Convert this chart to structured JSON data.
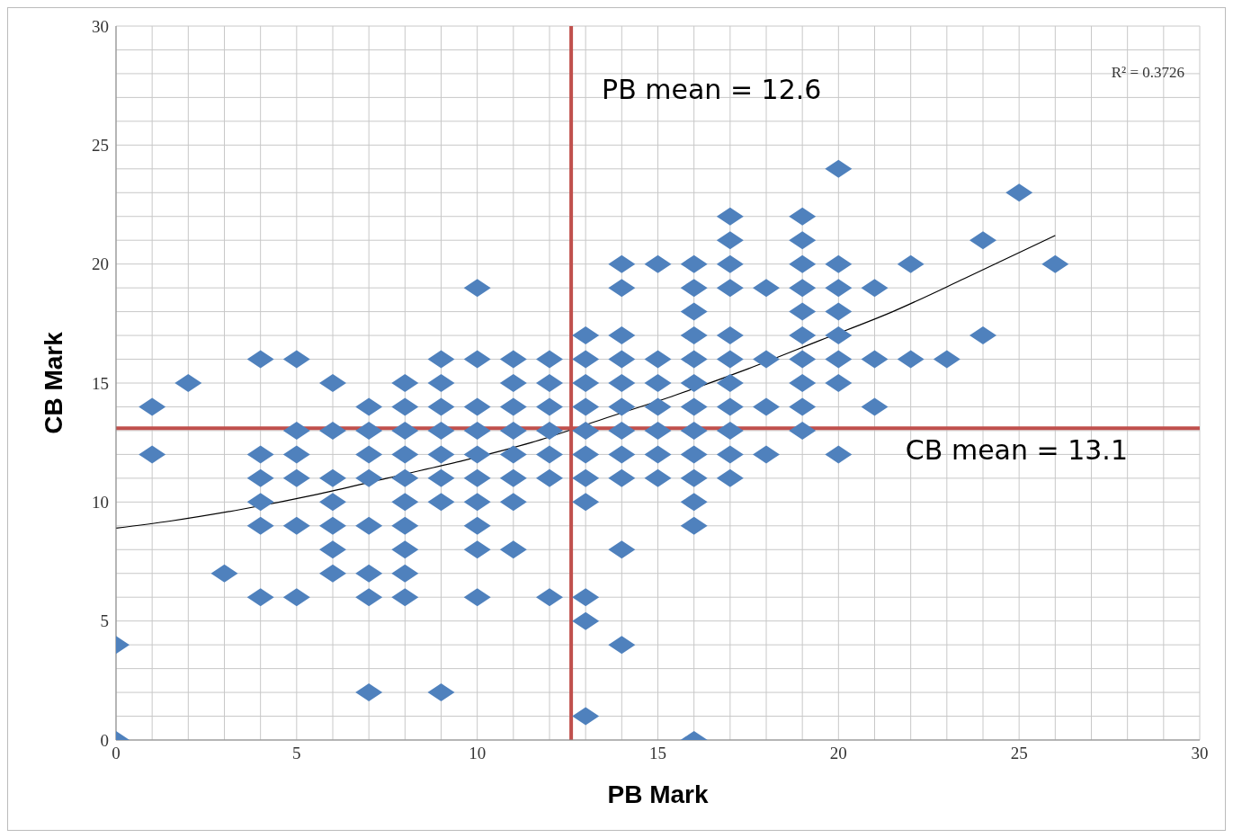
{
  "chart_data": {
    "type": "scatter",
    "xlabel": "PB Mark",
    "ylabel": "CB Mark",
    "marker": "diamond",
    "grid": true,
    "legend": false,
    "xlim": [
      0,
      30
    ],
    "ylim": [
      0,
      30
    ],
    "xticks": [
      0,
      {
        "value": 1,
        "label": null
      },
      {
        "value": 2,
        "label": null
      },
      {
        "value": 3,
        "label": null
      },
      {
        "value": 4,
        "label": null
      },
      5,
      {
        "value": 6,
        "label": null
      },
      {
        "value": 7,
        "label": null
      },
      {
        "value": 8,
        "label": null
      },
      {
        "value": 9,
        "label": null
      },
      10,
      {
        "value": 11,
        "label": null
      },
      {
        "value": 12,
        "label": null
      },
      {
        "value": 13,
        "label": null
      },
      {
        "value": 14,
        "label": null
      },
      15,
      {
        "value": 16,
        "label": null
      },
      {
        "value": 17,
        "label": null
      },
      {
        "value": 18,
        "label": null
      },
      {
        "value": 19,
        "label": null
      },
      20,
      {
        "value": 21,
        "label": null
      },
      {
        "value": 22,
        "label": null
      },
      {
        "value": 23,
        "label": null
      },
      {
        "value": 24,
        "label": null
      },
      25,
      {
        "value": 26,
        "label": null
      },
      {
        "value": 27,
        "label": null
      },
      {
        "value": 28,
        "label": null
      },
      {
        "value": 29,
        "label": null
      },
      30
    ],
    "yticks": [
      0,
      {
        "value": 1,
        "label": null
      },
      {
        "value": 2,
        "label": null
      },
      {
        "value": 3,
        "label": null
      },
      {
        "value": 4,
        "label": null
      },
      5,
      {
        "value": 6,
        "label": null
      },
      {
        "value": 7,
        "label": null
      },
      {
        "value": 8,
        "label": null
      },
      {
        "value": 9,
        "label": null
      },
      10,
      {
        "value": 11,
        "label": null
      },
      {
        "value": 12,
        "label": null
      },
      {
        "value": 13,
        "label": null
      },
      {
        "value": 14,
        "label": null
      },
      15,
      {
        "value": 16,
        "label": null
      },
      {
        "value": 17,
        "label": null
      },
      {
        "value": 18,
        "label": null
      },
      {
        "value": 19,
        "label": null
      },
      20,
      {
        "value": 21,
        "label": null
      },
      {
        "value": 22,
        "label": null
      },
      {
        "value": 23,
        "label": null
      },
      {
        "value": 24,
        "label": null
      },
      25,
      {
        "value": 26,
        "label": null
      },
      {
        "value": 27,
        "label": null
      },
      {
        "value": 28,
        "label": null
      },
      {
        "value": 29,
        "label": null
      },
      30
    ],
    "series": [
      {
        "type": "scatter",
        "color": "#4f81bd",
        "x": [
          0,
          0,
          1,
          1,
          2,
          3,
          4,
          4,
          4,
          4,
          4,
          4,
          5,
          5,
          5,
          5,
          5,
          5,
          6,
          6,
          6,
          6,
          6,
          6,
          6,
          7,
          7,
          7,
          7,
          7,
          7,
          7,
          7,
          8,
          8,
          8,
          8,
          8,
          8,
          8,
          8,
          8,
          8,
          9,
          9,
          9,
          9,
          9,
          9,
          9,
          9,
          10,
          10,
          10,
          10,
          10,
          10,
          10,
          10,
          10,
          10,
          11,
          11,
          11,
          11,
          11,
          11,
          11,
          11,
          12,
          12,
          12,
          12,
          12,
          12,
          12,
          13,
          13,
          13,
          13,
          13,
          13,
          13,
          13,
          13,
          13,
          13,
          14,
          14,
          14,
          14,
          14,
          14,
          14,
          14,
          14,
          14,
          14,
          15,
          15,
          15,
          15,
          15,
          15,
          15,
          16,
          16,
          16,
          16,
          16,
          16,
          16,
          16,
          16,
          16,
          16,
          16,
          16,
          17,
          17,
          17,
          17,
          17,
          17,
          17,
          17,
          17,
          17,
          17,
          18,
          18,
          18,
          18,
          19,
          19,
          19,
          19,
          19,
          19,
          19,
          19,
          19,
          19,
          20,
          20,
          20,
          20,
          20,
          20,
          20,
          20,
          21,
          21,
          21,
          22,
          22,
          23,
          24,
          24,
          25,
          26
        ],
        "values": [
          4,
          0,
          14,
          12,
          15,
          7,
          16,
          12,
          11,
          10,
          9,
          6,
          16,
          13,
          12,
          11,
          9,
          6,
          15,
          13,
          11,
          10,
          9,
          8,
          7,
          14,
          13,
          12,
          11,
          9,
          7,
          6,
          2,
          15,
          14,
          13,
          12,
          11,
          10,
          9,
          8,
          7,
          6,
          16,
          15,
          14,
          13,
          12,
          11,
          10,
          2,
          19,
          16,
          14,
          13,
          12,
          11,
          10,
          9,
          8,
          6,
          16,
          15,
          14,
          13,
          12,
          11,
          10,
          8,
          16,
          15,
          14,
          13,
          12,
          11,
          6,
          17,
          16,
          15,
          14,
          13,
          12,
          11,
          10,
          6,
          5,
          1,
          20,
          19,
          17,
          16,
          15,
          14,
          13,
          12,
          11,
          8,
          4,
          20,
          16,
          15,
          14,
          13,
          12,
          11,
          20,
          19,
          18,
          17,
          16,
          15,
          14,
          13,
          12,
          11,
          10,
          9,
          0,
          22,
          21,
          20,
          19,
          17,
          16,
          15,
          14,
          13,
          12,
          11,
          19,
          16,
          14,
          12,
          22,
          21,
          20,
          19,
          18,
          17,
          16,
          15,
          14,
          13,
          24,
          20,
          19,
          18,
          17,
          16,
          15,
          12,
          19,
          16,
          14,
          20,
          16,
          16,
          21,
          17,
          23,
          20
        ]
      },
      {
        "type": "line",
        "color": "#000000",
        "marker": "none",
        "x": [
          0,
          1.5,
          3.5,
          5.5,
          7.5,
          9.5,
          11.5,
          13.5,
          15.5,
          17.5,
          19.5,
          21.5,
          23.5,
          26
        ],
        "values": [
          8.9,
          9.2,
          9.7,
          10.3,
          11.0,
          11.7,
          12.5,
          13.5,
          14.5,
          15.6,
          16.8,
          18.0,
          19.4,
          21.2
        ]
      }
    ],
    "ref_lines": [
      {
        "axis": "x",
        "value": 12.6,
        "label": "PB mean = 12.6",
        "color": "#c0504d"
      },
      {
        "axis": "y",
        "value": 13.1,
        "label": "CB mean = 13.1",
        "color": "#c0504d"
      }
    ],
    "annotations": [
      "R² = 0.3726"
    ]
  }
}
